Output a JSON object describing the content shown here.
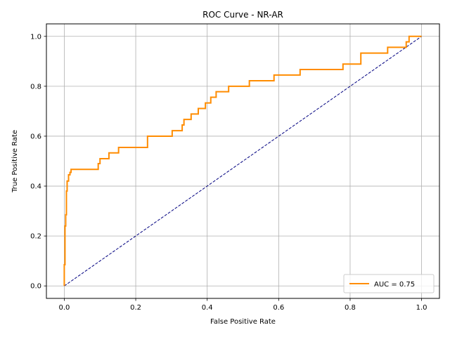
{
  "chart_data": {
    "type": "line",
    "title": "ROC Curve - NR-AR",
    "xlabel": "False Positive Rate",
    "ylabel": "True Positive Rate",
    "xlim": [
      -0.05,
      1.05
    ],
    "ylim": [
      -0.05,
      1.05
    ],
    "xticks": [
      "0.0",
      "0.2",
      "0.4",
      "0.6",
      "0.8",
      "1.0"
    ],
    "yticks": [
      "0.0",
      "0.2",
      "0.4",
      "0.6",
      "0.8",
      "1.0"
    ],
    "grid": true,
    "legend_position": "lower-right",
    "colors": {
      "roc": "#ff8c00",
      "diagonal": "#000080",
      "grid": "#b0b0b0"
    },
    "series": [
      {
        "name": "AUC = 0.75",
        "style": "solid",
        "x": [
          0.0,
          0.0,
          0.002,
          0.002,
          0.004,
          0.004,
          0.006,
          0.006,
          0.008,
          0.008,
          0.012,
          0.012,
          0.016,
          0.016,
          0.019,
          0.019,
          0.095,
          0.095,
          0.1,
          0.1,
          0.125,
          0.125,
          0.152,
          0.152,
          0.233,
          0.233,
          0.302,
          0.302,
          0.33,
          0.33,
          0.335,
          0.335,
          0.355,
          0.355,
          0.375,
          0.375,
          0.395,
          0.395,
          0.41,
          0.41,
          0.425,
          0.425,
          0.46,
          0.46,
          0.518,
          0.518,
          0.587,
          0.587,
          0.66,
          0.66,
          0.78,
          0.78,
          0.83,
          0.83,
          0.905,
          0.905,
          0.957,
          0.957,
          0.965,
          0.965,
          1.0
        ],
        "y": [
          0.0,
          0.085,
          0.085,
          0.24,
          0.24,
          0.285,
          0.285,
          0.38,
          0.38,
          0.42,
          0.42,
          0.445,
          0.445,
          0.455,
          0.455,
          0.467,
          0.467,
          0.49,
          0.49,
          0.51,
          0.51,
          0.533,
          0.533,
          0.555,
          0.555,
          0.6,
          0.6,
          0.622,
          0.622,
          0.645,
          0.645,
          0.667,
          0.667,
          0.689,
          0.689,
          0.711,
          0.711,
          0.733,
          0.733,
          0.756,
          0.756,
          0.778,
          0.778,
          0.8,
          0.8,
          0.822,
          0.822,
          0.845,
          0.845,
          0.867,
          0.867,
          0.889,
          0.889,
          0.933,
          0.933,
          0.956,
          0.956,
          0.978,
          0.978,
          1.0,
          1.0
        ]
      },
      {
        "style": "dashed",
        "x": [
          0.0,
          1.0
        ],
        "y": [
          0.0,
          1.0
        ]
      }
    ],
    "legend": [
      {
        "label": "AUC = 0.75"
      }
    ]
  }
}
